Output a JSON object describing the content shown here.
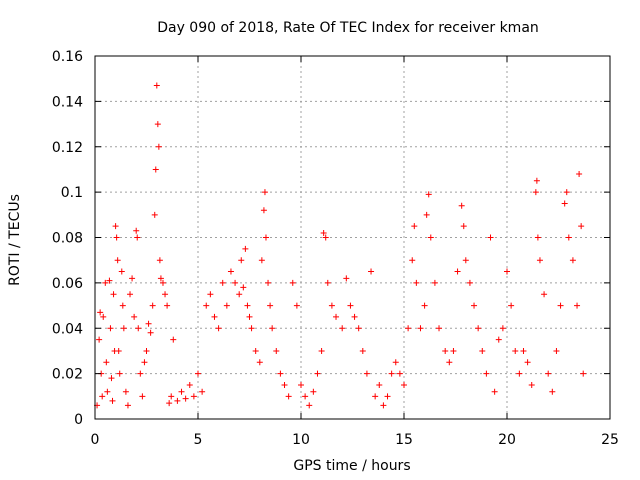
{
  "chart_data": {
    "type": "scatter",
    "title": "Day 090 of 2018, Rate Of TEC Index for receiver kman",
    "xlabel": "GPS time / hours",
    "ylabel": "ROTI / TECUs",
    "xlim": [
      0,
      25
    ],
    "ylim": [
      0,
      0.16
    ],
    "xticks": [
      0,
      5,
      10,
      15,
      20,
      25
    ],
    "xtick_labels": [
      "0",
      "5",
      "10",
      "15",
      "20",
      "25"
    ],
    "yticks": [
      0,
      0.02,
      0.04,
      0.06,
      0.08,
      0.1,
      0.12,
      0.14,
      0.16
    ],
    "ytick_labels": [
      "0",
      "0.02",
      "0.04",
      "0.06",
      "0.08",
      "0.1",
      "0.12",
      "0.14",
      "0.16"
    ],
    "grid": true,
    "marker": "plus",
    "color": "#ff0000",
    "points": [
      [
        0.1,
        0.006
      ],
      [
        0.2,
        0.035
      ],
      [
        0.25,
        0.047
      ],
      [
        0.3,
        0.02
      ],
      [
        0.35,
        0.01
      ],
      [
        0.4,
        0.045
      ],
      [
        0.5,
        0.06
      ],
      [
        0.55,
        0.025
      ],
      [
        0.6,
        0.012
      ],
      [
        0.7,
        0.061
      ],
      [
        0.75,
        0.04
      ],
      [
        0.8,
        0.018
      ],
      [
        0.85,
        0.008
      ],
      [
        0.9,
        0.055
      ],
      [
        0.95,
        0.03
      ],
      [
        1.0,
        0.085
      ],
      [
        1.05,
        0.08
      ],
      [
        1.1,
        0.07
      ],
      [
        1.15,
        0.03
      ],
      [
        1.2,
        0.02
      ],
      [
        1.3,
        0.065
      ],
      [
        1.35,
        0.05
      ],
      [
        1.4,
        0.04
      ],
      [
        1.5,
        0.012
      ],
      [
        1.6,
        0.006
      ],
      [
        1.7,
        0.055
      ],
      [
        1.8,
        0.062
      ],
      [
        1.9,
        0.045
      ],
      [
        2.0,
        0.083
      ],
      [
        2.05,
        0.08
      ],
      [
        2.1,
        0.04
      ],
      [
        2.2,
        0.02
      ],
      [
        2.3,
        0.01
      ],
      [
        2.4,
        0.025
      ],
      [
        2.5,
        0.03
      ],
      [
        2.6,
        0.042
      ],
      [
        2.7,
        0.038
      ],
      [
        2.8,
        0.05
      ],
      [
        2.9,
        0.09
      ],
      [
        2.95,
        0.11
      ],
      [
        3.0,
        0.147
      ],
      [
        3.05,
        0.13
      ],
      [
        3.1,
        0.12
      ],
      [
        3.15,
        0.07
      ],
      [
        3.2,
        0.062
      ],
      [
        3.3,
        0.06
      ],
      [
        3.4,
        0.055
      ],
      [
        3.5,
        0.05
      ],
      [
        3.6,
        0.007
      ],
      [
        3.7,
        0.01
      ],
      [
        3.8,
        0.035
      ],
      [
        4.0,
        0.008
      ],
      [
        4.2,
        0.012
      ],
      [
        4.4,
        0.009
      ],
      [
        4.6,
        0.015
      ],
      [
        4.8,
        0.01
      ],
      [
        5.0,
        0.02
      ],
      [
        5.2,
        0.012
      ],
      [
        5.4,
        0.05
      ],
      [
        5.6,
        0.055
      ],
      [
        5.8,
        0.045
      ],
      [
        6.0,
        0.04
      ],
      [
        6.2,
        0.06
      ],
      [
        6.4,
        0.05
      ],
      [
        6.6,
        0.065
      ],
      [
        6.8,
        0.06
      ],
      [
        7.0,
        0.055
      ],
      [
        7.1,
        0.07
      ],
      [
        7.2,
        0.058
      ],
      [
        7.3,
        0.075
      ],
      [
        7.4,
        0.05
      ],
      [
        7.5,
        0.045
      ],
      [
        7.6,
        0.04
      ],
      [
        7.8,
        0.03
      ],
      [
        8.0,
        0.025
      ],
      [
        8.1,
        0.07
      ],
      [
        8.2,
        0.092
      ],
      [
        8.25,
        0.1
      ],
      [
        8.3,
        0.08
      ],
      [
        8.4,
        0.06
      ],
      [
        8.5,
        0.05
      ],
      [
        8.6,
        0.04
      ],
      [
        8.8,
        0.03
      ],
      [
        9.0,
        0.02
      ],
      [
        9.2,
        0.015
      ],
      [
        9.4,
        0.01
      ],
      [
        9.6,
        0.06
      ],
      [
        9.8,
        0.05
      ],
      [
        10.0,
        0.015
      ],
      [
        10.2,
        0.01
      ],
      [
        10.4,
        0.006
      ],
      [
        10.6,
        0.012
      ],
      [
        10.8,
        0.02
      ],
      [
        11.0,
        0.03
      ],
      [
        11.1,
        0.082
      ],
      [
        11.2,
        0.08
      ],
      [
        11.3,
        0.06
      ],
      [
        11.5,
        0.05
      ],
      [
        11.7,
        0.045
      ],
      [
        12.0,
        0.04
      ],
      [
        12.2,
        0.062
      ],
      [
        12.4,
        0.05
      ],
      [
        12.6,
        0.045
      ],
      [
        12.8,
        0.04
      ],
      [
        13.0,
        0.03
      ],
      [
        13.2,
        0.02
      ],
      [
        13.4,
        0.065
      ],
      [
        13.6,
        0.01
      ],
      [
        13.8,
        0.015
      ],
      [
        14.0,
        0.006
      ],
      [
        14.2,
        0.01
      ],
      [
        14.4,
        0.02
      ],
      [
        14.6,
        0.025
      ],
      [
        14.8,
        0.02
      ],
      [
        15.0,
        0.015
      ],
      [
        15.2,
        0.04
      ],
      [
        15.4,
        0.07
      ],
      [
        15.5,
        0.085
      ],
      [
        15.6,
        0.06
      ],
      [
        15.8,
        0.04
      ],
      [
        16.0,
        0.05
      ],
      [
        16.1,
        0.09
      ],
      [
        16.2,
        0.099
      ],
      [
        16.3,
        0.08
      ],
      [
        16.5,
        0.06
      ],
      [
        16.7,
        0.04
      ],
      [
        17.0,
        0.03
      ],
      [
        17.2,
        0.025
      ],
      [
        17.4,
        0.03
      ],
      [
        17.6,
        0.065
      ],
      [
        17.8,
        0.094
      ],
      [
        17.9,
        0.085
      ],
      [
        18.0,
        0.07
      ],
      [
        18.2,
        0.06
      ],
      [
        18.4,
        0.05
      ],
      [
        18.6,
        0.04
      ],
      [
        18.8,
        0.03
      ],
      [
        19.0,
        0.02
      ],
      [
        19.2,
        0.08
      ],
      [
        19.4,
        0.012
      ],
      [
        19.6,
        0.035
      ],
      [
        19.8,
        0.04
      ],
      [
        20.0,
        0.065
      ],
      [
        20.2,
        0.05
      ],
      [
        20.4,
        0.03
      ],
      [
        20.6,
        0.02
      ],
      [
        20.8,
        0.03
      ],
      [
        21.0,
        0.025
      ],
      [
        21.2,
        0.015
      ],
      [
        21.4,
        0.1
      ],
      [
        21.45,
        0.105
      ],
      [
        21.5,
        0.08
      ],
      [
        21.6,
        0.07
      ],
      [
        21.8,
        0.055
      ],
      [
        22.0,
        0.02
      ],
      [
        22.2,
        0.012
      ],
      [
        22.4,
        0.03
      ],
      [
        22.6,
        0.05
      ],
      [
        22.8,
        0.095
      ],
      [
        22.9,
        0.1
      ],
      [
        23.0,
        0.08
      ],
      [
        23.2,
        0.07
      ],
      [
        23.4,
        0.05
      ],
      [
        23.5,
        0.108
      ],
      [
        23.6,
        0.085
      ],
      [
        23.7,
        0.02
      ]
    ]
  }
}
